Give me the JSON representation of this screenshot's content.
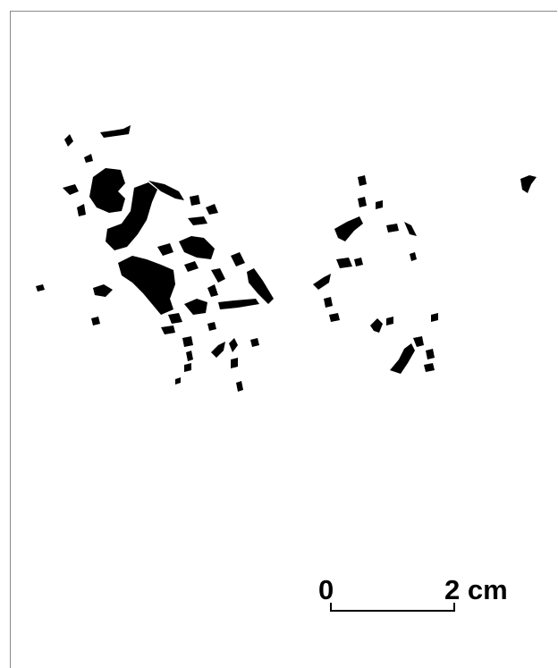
{
  "figure": {
    "scale_bar": {
      "start_label": "0",
      "end_label": "2 cm"
    },
    "ink_color": "#000000",
    "border_color": "#8a8a8a"
  }
}
